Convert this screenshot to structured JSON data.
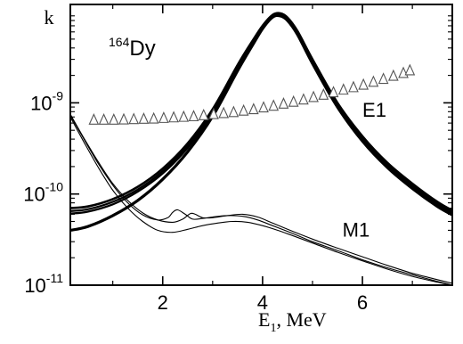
{
  "chart_data": {
    "type": "line",
    "xlabel": "E",
    "xlabel_subscript": "1",
    "xlabel_unit": ", MeV",
    "ylabel": "k",
    "yscale": "log",
    "xlim": [
      0.15,
      7.8
    ],
    "ylim": [
      1e-11,
      1.2e-08
    ],
    "x_ticks": [
      2,
      4,
      6
    ],
    "y_ticks": [
      {
        "value": 1e-11,
        "base": "10",
        "exp": "-11"
      },
      {
        "value": 1e-10,
        "base": "10",
        "exp": "-10"
      },
      {
        "value": 1e-09,
        "base": "10",
        "exp": "-9"
      }
    ],
    "annotation": {
      "superscript": "164",
      "text": "Dy"
    },
    "series_labels": [
      {
        "text": "E1",
        "x": 6.0,
        "y": 7e-10
      },
      {
        "text": "M1",
        "x": 5.6,
        "y": 3.4e-11
      }
    ],
    "series": [
      {
        "group": "E1",
        "x": [
          0.15,
          0.5,
          1.0,
          1.5,
          2.0,
          2.5,
          3.0,
          3.5,
          3.8,
          4.0,
          4.2,
          4.35,
          4.5,
          4.7,
          5.0,
          5.5,
          6.0,
          6.5,
          7.0,
          7.5,
          7.8
        ],
        "y": [
          7e-11,
          7.3e-11,
          8.8e-11,
          1.2e-10,
          1.9e-10,
          3.6e-10,
          8.5e-10,
          2.6e-09,
          4.8e-09,
          7e-09,
          9.2e-09,
          9.6e-09,
          8.6e-09,
          6.1e-09,
          3e-09,
          1e-09,
          4.3e-10,
          2.2e-10,
          1.3e-10,
          8.2e-11,
          6.6e-11
        ]
      },
      {
        "group": "E1",
        "x": [
          0.15,
          0.5,
          1.0,
          1.5,
          2.0,
          2.5,
          3.0,
          3.5,
          3.8,
          4.0,
          4.2,
          4.35,
          4.5,
          4.7,
          5.0,
          5.5,
          6.0,
          6.5,
          7.0,
          7.5,
          7.8
        ],
        "y": [
          6.5e-11,
          6.8e-11,
          8.2e-11,
          1.12e-10,
          1.78e-10,
          3.4e-10,
          8e-10,
          2.45e-09,
          4.6e-09,
          6.8e-09,
          9e-09,
          9.3e-09,
          8.3e-09,
          5.9e-09,
          2.9e-09,
          9.6e-10,
          4.1e-10,
          2.1e-10,
          1.25e-10,
          7.9e-11,
          6.3e-11
        ]
      },
      {
        "group": "E1",
        "x": [
          0.15,
          0.5,
          1.0,
          1.5,
          2.0,
          2.5,
          3.0,
          3.5,
          3.8,
          4.0,
          4.2,
          4.35,
          4.5,
          4.7,
          5.0,
          5.5,
          6.0,
          6.5,
          7.0,
          7.5,
          7.8
        ],
        "y": [
          6.1e-11,
          6.4e-11,
          7.7e-11,
          1.06e-10,
          1.68e-10,
          3.2e-10,
          7.6e-10,
          2.35e-09,
          4.4e-09,
          6.6e-09,
          8.8e-09,
          9.1e-09,
          8.1e-09,
          5.7e-09,
          2.8e-09,
          9.3e-10,
          3.95e-10,
          2.02e-10,
          1.2e-10,
          7.6e-11,
          6.1e-11
        ]
      },
      {
        "group": "E1",
        "x": [
          0.15,
          0.5,
          1.0,
          1.5,
          2.0,
          2.5,
          3.0,
          3.5,
          3.8,
          4.0,
          4.2,
          4.35,
          4.5,
          4.7,
          5.0,
          5.5,
          6.0,
          6.5,
          7.0,
          7.5,
          7.8
        ],
        "y": [
          4e-11,
          4.4e-11,
          5.8e-11,
          8.5e-11,
          1.45e-10,
          2.9e-10,
          7.1e-10,
          2.25e-09,
          4.3e-09,
          6.5e-09,
          8.7e-09,
          9e-09,
          8e-09,
          5.6e-09,
          2.7e-09,
          9e-10,
          3.8e-10,
          1.95e-10,
          1.15e-10,
          7.3e-11,
          5.9e-11
        ]
      },
      {
        "group": "M1",
        "x": [
          0.15,
          0.4,
          0.7,
          1.0,
          1.3,
          1.6,
          1.9,
          2.1,
          2.2,
          2.3,
          2.45,
          2.6,
          2.8,
          3.0,
          3.3,
          3.6,
          3.9,
          4.2,
          4.6,
          5.0,
          5.5,
          6.0,
          6.5,
          7.0,
          7.5,
          7.8
        ],
        "y": [
          7.3e-10,
          4.2e-10,
          2.2e-10,
          1.25e-10,
          8e-11,
          5.9e-11,
          5.2e-11,
          5.5e-11,
          6.3e-11,
          6.7e-11,
          6e-11,
          5.3e-11,
          5.4e-11,
          5.6e-11,
          5.8e-11,
          5.7e-11,
          5.2e-11,
          4.5e-11,
          3.7e-11,
          3e-11,
          2.4e-11,
          1.9e-11,
          1.55e-11,
          1.3e-11,
          1.1e-11,
          1e-11
        ]
      },
      {
        "group": "M1",
        "x": [
          0.15,
          0.4,
          0.7,
          1.0,
          1.3,
          1.6,
          1.9,
          2.2,
          2.4,
          2.55,
          2.65,
          2.8,
          3.0,
          3.3,
          3.6,
          3.9,
          4.2,
          4.6,
          5.0,
          5.5,
          6.0,
          6.5,
          7.0,
          7.5,
          7.8
        ],
        "y": [
          7.5e-10,
          4.3e-10,
          2.3e-10,
          1.3e-10,
          8.5e-11,
          6.2e-11,
          5.2e-11,
          4.9e-11,
          5.3e-11,
          6.1e-11,
          6e-11,
          5.5e-11,
          5.5e-11,
          5.8e-11,
          6e-11,
          5.6e-11,
          4.8e-11,
          3.9e-11,
          3.2e-11,
          2.55e-11,
          2.05e-11,
          1.65e-11,
          1.35e-11,
          1.15e-11,
          1.05e-11
        ]
      },
      {
        "group": "M1",
        "x": [
          0.15,
          0.4,
          0.7,
          1.0,
          1.3,
          1.6,
          1.9,
          2.2,
          2.5,
          2.8,
          3.1,
          3.4,
          3.7,
          4.0,
          4.3,
          4.6,
          5.0,
          5.5,
          6.0,
          6.5,
          7.0,
          7.5,
          7.8
        ],
        "y": [
          7e-10,
          3.9e-10,
          2e-10,
          1.1e-10,
          7e-11,
          5e-11,
          4e-11,
          3.8e-11,
          4.1e-11,
          4.5e-11,
          4.8e-11,
          5e-11,
          4.9e-11,
          4.5e-11,
          4e-11,
          3.5e-11,
          2.9e-11,
          2.3e-11,
          1.85e-11,
          1.5e-11,
          1.25e-11,
          1.08e-11,
          1e-11
        ]
      },
      {
        "group": "triangles",
        "marker": "open-triangle",
        "x": [
          0.62,
          0.82,
          1.02,
          1.22,
          1.42,
          1.62,
          1.82,
          2.02,
          2.22,
          2.42,
          2.62,
          2.82,
          3.02,
          3.22,
          3.42,
          3.62,
          3.82,
          4.02,
          4.22,
          4.42,
          4.62,
          4.82,
          5.02,
          5.22,
          5.42,
          5.62,
          5.82,
          6.02,
          6.22,
          6.42,
          6.62,
          6.82,
          6.95
        ],
        "y": [
          6.6e-10,
          6.6e-10,
          6.6e-10,
          6.65e-10,
          6.7e-10,
          6.75e-10,
          6.8e-10,
          6.9e-10,
          7e-10,
          7.1e-10,
          7.2e-10,
          7.4e-10,
          7.6e-10,
          7.8e-10,
          8e-10,
          8.3e-10,
          8.6e-10,
          9e-10,
          9.4e-10,
          9.9e-10,
          1.04e-09,
          1.1e-09,
          1.17e-09,
          1.24e-09,
          1.32e-09,
          1.41e-09,
          1.5e-09,
          1.6e-09,
          1.72e-09,
          1.85e-09,
          2e-09,
          2.15e-09,
          2.3e-09
        ]
      }
    ]
  }
}
